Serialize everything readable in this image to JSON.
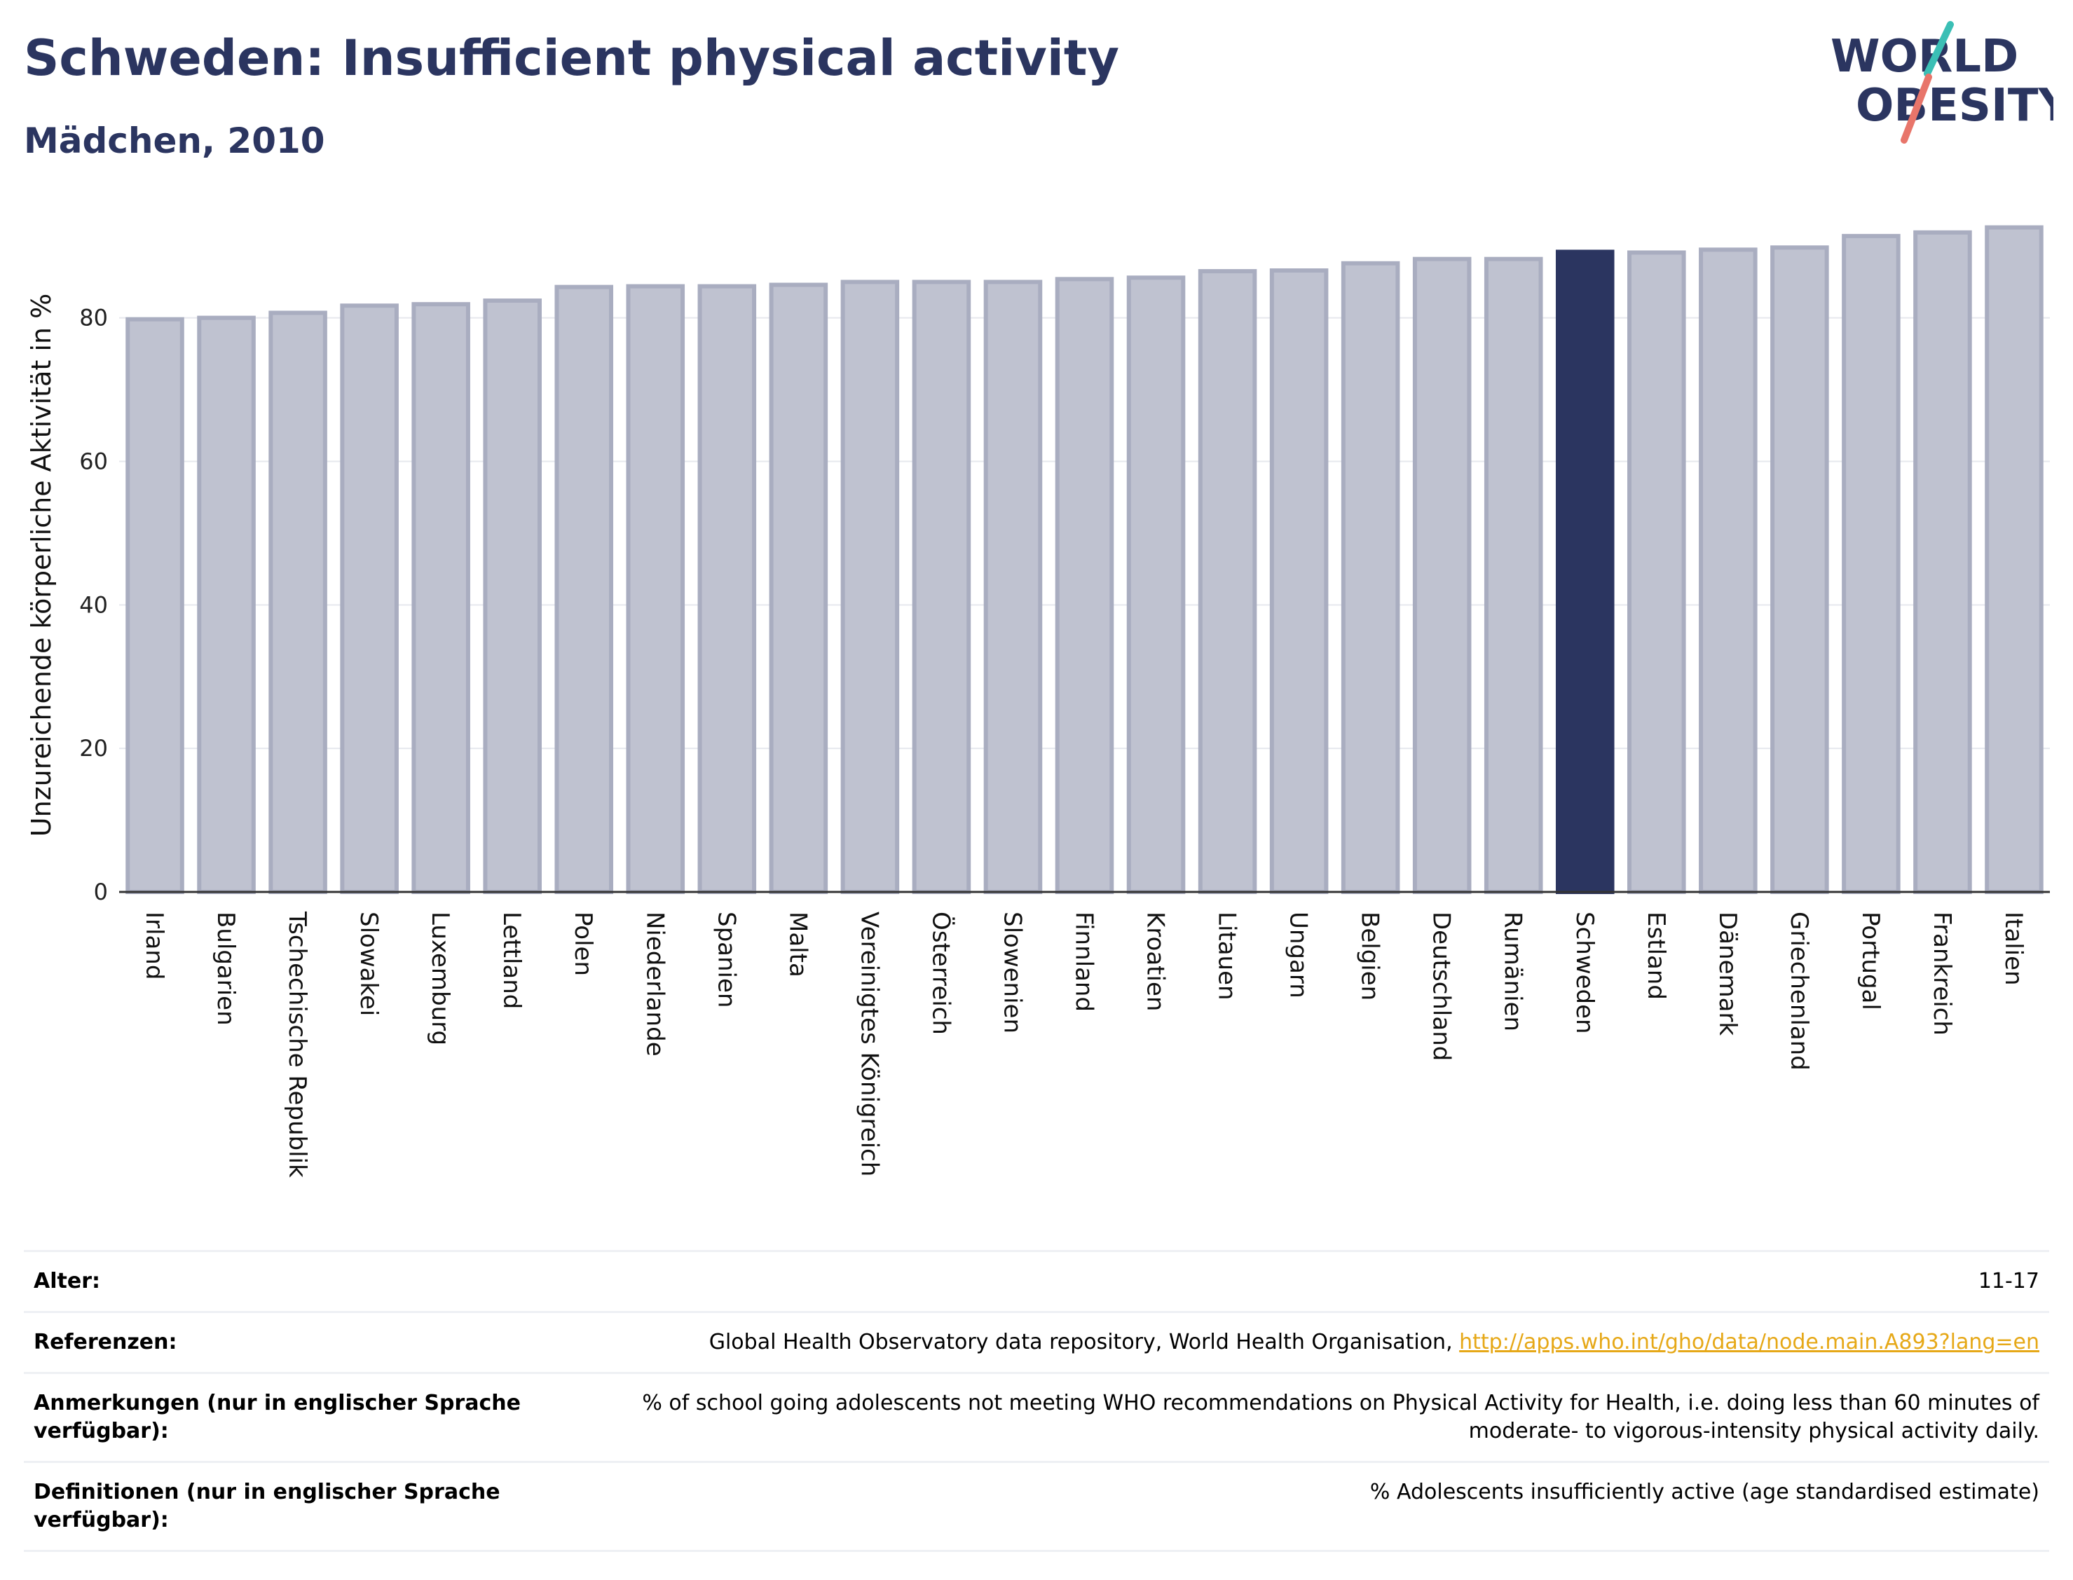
{
  "header": {
    "title": "Schweden: Insufficient physical activity",
    "subtitle": "Mädchen, 2010",
    "logo_line1": "WORLD",
    "logo_line2": "OBESITY"
  },
  "colors": {
    "bar": "#bfc2d0",
    "bar_stroke": "#a9adc0",
    "highlight": "#2b3560",
    "grid": "#e6e8ee",
    "accent_teal": "#3bbfb5",
    "accent_coral": "#e8756a"
  },
  "chart_data": {
    "type": "bar",
    "ylabel": "Unzureichende körperliche Aktivität in %",
    "ylim": [
      0,
      95
    ],
    "yticks": [
      0,
      20,
      40,
      60,
      80
    ],
    "grid": true,
    "highlight_category": "Schweden",
    "categories": [
      "Irland",
      "Bulgarien",
      "Tschechische Republik",
      "Slowakei",
      "Luxemburg",
      "Lettland",
      "Polen",
      "Niederlande",
      "Spanien",
      "Malta",
      "Vereinigtes Königreich",
      "Österreich",
      "Slowenien",
      "Finnland",
      "Kroatien",
      "Litauen",
      "Ungarn",
      "Belgien",
      "Deutschland",
      "Rumänien",
      "Schweden",
      "Estland",
      "Dänemark",
      "Griechenland",
      "Portugal",
      "Frankreich",
      "Italien"
    ],
    "values": [
      79.8,
      80.0,
      80.7,
      81.7,
      81.9,
      82.4,
      84.3,
      84.4,
      84.4,
      84.6,
      85.0,
      85.0,
      85.0,
      85.4,
      85.6,
      86.5,
      86.6,
      87.6,
      88.2,
      88.2,
      89.2,
      89.1,
      89.5,
      89.8,
      91.4,
      91.9,
      92.6
    ]
  },
  "info": {
    "age_label": "Alter:",
    "age_value": "11-17",
    "ref_label": "Referenzen:",
    "ref_text": "Global Health Observatory data repository, World Health Organisation, ",
    "ref_link": "http://apps.who.int/gho/data/node.main.A893?lang=en",
    "notes_label": "Anmerkungen (nur in englischer Sprache verfügbar):",
    "notes_value": "% of school going adolescents not meeting WHO recommendations on Physical Activity for Health, i.e. doing less than 60 minutes of moderate- to vigorous-intensity physical activity daily.",
    "def_label": "Definitionen (nur in englischer Sprache verfügbar):",
    "def_value": "% Adolescents insufficiently active (age standardised estimate)"
  }
}
